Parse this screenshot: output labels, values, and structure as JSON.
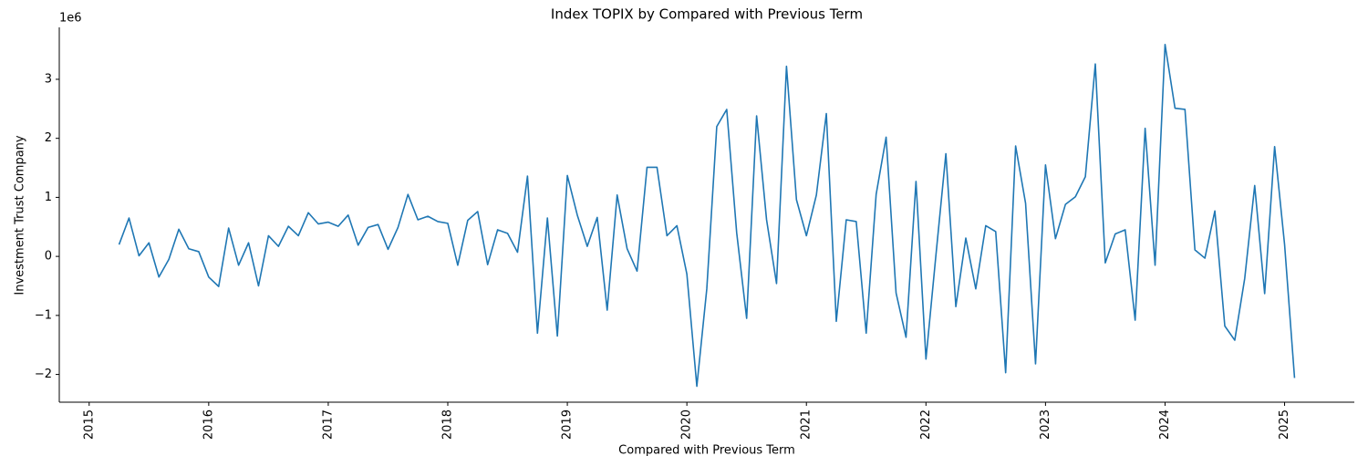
{
  "chart_data": {
    "type": "line",
    "title": "Index TOPIX by Compared with Previous Term",
    "xlabel": "Compared with Previous Term",
    "ylabel": "Investment Trust Company",
    "y_offset_label": "1e6",
    "x": [
      "2015-04",
      "2015-05",
      "2015-06",
      "2015-07",
      "2015-08",
      "2015-09",
      "2015-10",
      "2015-11",
      "2015-12",
      "2016-01",
      "2016-02",
      "2016-03",
      "2016-04",
      "2016-05",
      "2016-06",
      "2016-07",
      "2016-08",
      "2016-09",
      "2016-10",
      "2016-11",
      "2016-12",
      "2017-01",
      "2017-02",
      "2017-03",
      "2017-04",
      "2017-05",
      "2017-06",
      "2017-07",
      "2017-08",
      "2017-09",
      "2017-10",
      "2017-11",
      "2017-12",
      "2018-01",
      "2018-02",
      "2018-03",
      "2018-04",
      "2018-05",
      "2018-06",
      "2018-07",
      "2018-08",
      "2018-09",
      "2018-10",
      "2018-11",
      "2018-12",
      "2019-01",
      "2019-02",
      "2019-03",
      "2019-04",
      "2019-05",
      "2019-06",
      "2019-07",
      "2019-08",
      "2019-09",
      "2019-10",
      "2019-11",
      "2019-12",
      "2020-01",
      "2020-02",
      "2020-03",
      "2020-04",
      "2020-05",
      "2020-06",
      "2020-07",
      "2020-08",
      "2020-09",
      "2020-10",
      "2020-11",
      "2020-12",
      "2021-01",
      "2021-02",
      "2021-03",
      "2021-04",
      "2021-05",
      "2021-06",
      "2021-07",
      "2021-08",
      "2021-09",
      "2021-10",
      "2021-11",
      "2021-12",
      "2022-01",
      "2022-02",
      "2022-03",
      "2022-04",
      "2022-05",
      "2022-06",
      "2022-07",
      "2022-08",
      "2022-09",
      "2022-10",
      "2022-11",
      "2022-12",
      "2023-01",
      "2023-02",
      "2023-03",
      "2023-04",
      "2023-05",
      "2023-06",
      "2023-07",
      "2023-08",
      "2023-09",
      "2023-10",
      "2023-11",
      "2023-12",
      "2024-01",
      "2024-02",
      "2024-03",
      "2024-04",
      "2024-05",
      "2024-06",
      "2024-07",
      "2024-08",
      "2024-09",
      "2024-10",
      "2024-11",
      "2024-12",
      "2025-01",
      "2025-02"
    ],
    "series": [
      {
        "name": "Investment Trust Company",
        "color": "#1f77b4",
        "values": [
          200000,
          650000,
          10000,
          230000,
          -350000,
          -50000,
          460000,
          130000,
          80000,
          -350000,
          -510000,
          480000,
          -150000,
          230000,
          -500000,
          350000,
          170000,
          510000,
          350000,
          740000,
          550000,
          580000,
          510000,
          700000,
          190000,
          490000,
          540000,
          120000,
          490000,
          1050000,
          620000,
          680000,
          590000,
          560000,
          -150000,
          610000,
          760000,
          -140000,
          450000,
          390000,
          70000,
          1360000,
          -1300000,
          650000,
          -1350000,
          1370000,
          700000,
          170000,
          660000,
          -910000,
          1040000,
          130000,
          -250000,
          1510000,
          1510000,
          350000,
          520000,
          -300000,
          -2200000,
          -550000,
          2200000,
          2490000,
          400000,
          -1050000,
          2380000,
          620000,
          -460000,
          3220000,
          960000,
          350000,
          1040000,
          2420000,
          -1100000,
          620000,
          590000,
          -1300000,
          1050000,
          2020000,
          -620000,
          -1370000,
          1270000,
          -1740000,
          20000,
          1740000,
          -850000,
          310000,
          -550000,
          520000,
          420000,
          -1970000,
          1870000,
          900000,
          -1820000,
          1550000,
          300000,
          880000,
          1010000,
          1350000,
          3260000,
          -110000,
          380000,
          450000,
          -1080000,
          2170000,
          -150000,
          3590000,
          2510000,
          2490000,
          110000,
          -30000,
          770000,
          -1180000,
          -1420000,
          -370000,
          1200000,
          -630000,
          1860000,
          200000,
          -2060000
        ]
      }
    ],
    "xlim": [
      "2014-10",
      "2025-08"
    ],
    "xticks": [
      "2015",
      "2016",
      "2017",
      "2018",
      "2019",
      "2020",
      "2021",
      "2022",
      "2023",
      "2024",
      "2025"
    ],
    "ylim": [
      -2470000,
      3880000
    ],
    "yticks": [
      {
        "value": -2000000,
        "label": "−2"
      },
      {
        "value": -1000000,
        "label": "−1"
      },
      {
        "value": 0,
        "label": "0"
      },
      {
        "value": 1000000,
        "label": "1"
      },
      {
        "value": 2000000,
        "label": "2"
      },
      {
        "value": 3000000,
        "label": "3"
      }
    ],
    "grid": false
  }
}
